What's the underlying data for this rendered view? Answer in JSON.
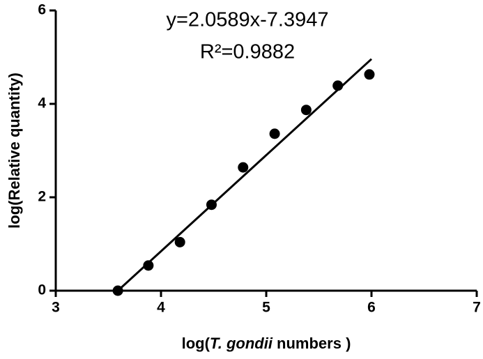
{
  "chart_data": {
    "type": "scatter",
    "x": [
      3.59,
      3.88,
      4.18,
      4.48,
      4.78,
      5.08,
      5.38,
      5.68,
      5.98
    ],
    "values": [
      0.0,
      0.54,
      1.04,
      1.84,
      2.64,
      3.36,
      3.87,
      4.39,
      4.63
    ],
    "color": "#000000",
    "fit_line": {
      "x": [
        3.59,
        6.0
      ],
      "values": [
        0.0,
        4.96
      ]
    },
    "annotations": [
      "y=2.0589x-7.3947",
      "R²=0.9882"
    ],
    "x_label": [
      "log(",
      "T. gondii",
      " numbers )"
    ],
    "y_label": "log(Relative quantity)",
    "xlim": [
      3,
      7
    ],
    "xticks": [
      3,
      4,
      5,
      6,
      7
    ],
    "ylim": [
      0,
      6
    ],
    "yticks": [
      0,
      2,
      4,
      6
    ]
  }
}
